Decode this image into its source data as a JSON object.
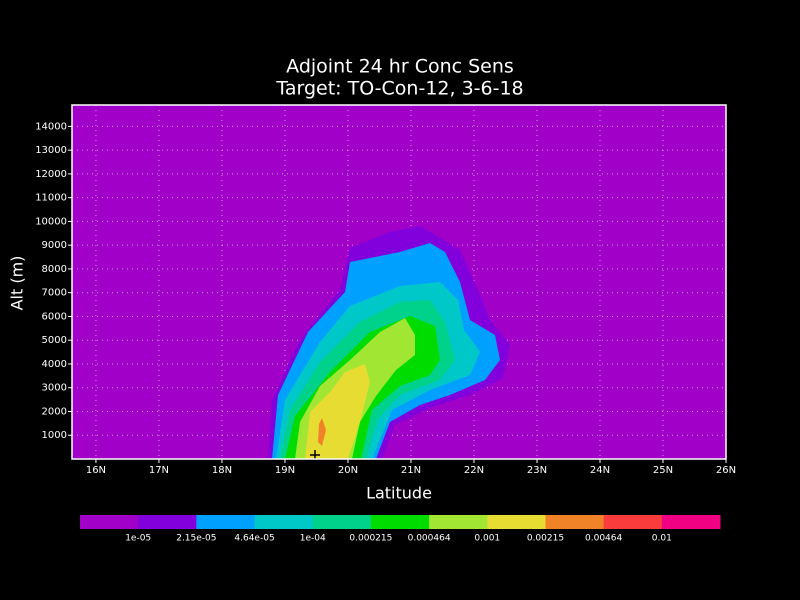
{
  "chart_data": {
    "type": "filled-contour",
    "title": [
      "Adjoint 24 hr Conc Sens",
      "Target: TO-Con-12, 3-6-18"
    ],
    "x_label": "Latitude",
    "y_label": "Alt (m)",
    "xlim": [
      15.62,
      26
    ],
    "ylim": [
      0,
      14900
    ],
    "xticks": [
      {
        "value": 16,
        "label": "16N"
      },
      {
        "value": 17,
        "label": "17N"
      },
      {
        "value": 18,
        "label": "18N"
      },
      {
        "value": 19,
        "label": "19N"
      },
      {
        "value": 20,
        "label": "20N"
      },
      {
        "value": 21,
        "label": "21N"
      },
      {
        "value": 22,
        "label": "22N"
      },
      {
        "value": 23,
        "label": "23N"
      },
      {
        "value": 24,
        "label": "24N"
      },
      {
        "value": 25,
        "label": "25N"
      },
      {
        "value": 26,
        "label": "26N"
      }
    ],
    "yticks": [
      1000,
      2000,
      3000,
      4000,
      5000,
      6000,
      7000,
      8000,
      9000,
      10000,
      11000,
      12000,
      13000,
      14000
    ],
    "grid": true,
    "colorbar": {
      "levels": [
        {
          "value": 1e-05,
          "label": "1e-05"
        },
        {
          "value": 2.15e-05,
          "label": "2.15e-05"
        },
        {
          "value": 4.64e-05,
          "label": "4.64e-05"
        },
        {
          "value": 0.0001,
          "label": "1e-04"
        },
        0.000215,
        0.000464,
        0.001,
        0.00215,
        0.00464,
        0.01
      ],
      "colors": [
        "#a000c8",
        "#8200dc",
        "#00a0ff",
        "#00c8c8",
        "#00d28c",
        "#00dc00",
        "#a0e632",
        "#e6dc32",
        "#f08228",
        "#fa3c3c",
        "#f00082"
      ]
    }
  }
}
